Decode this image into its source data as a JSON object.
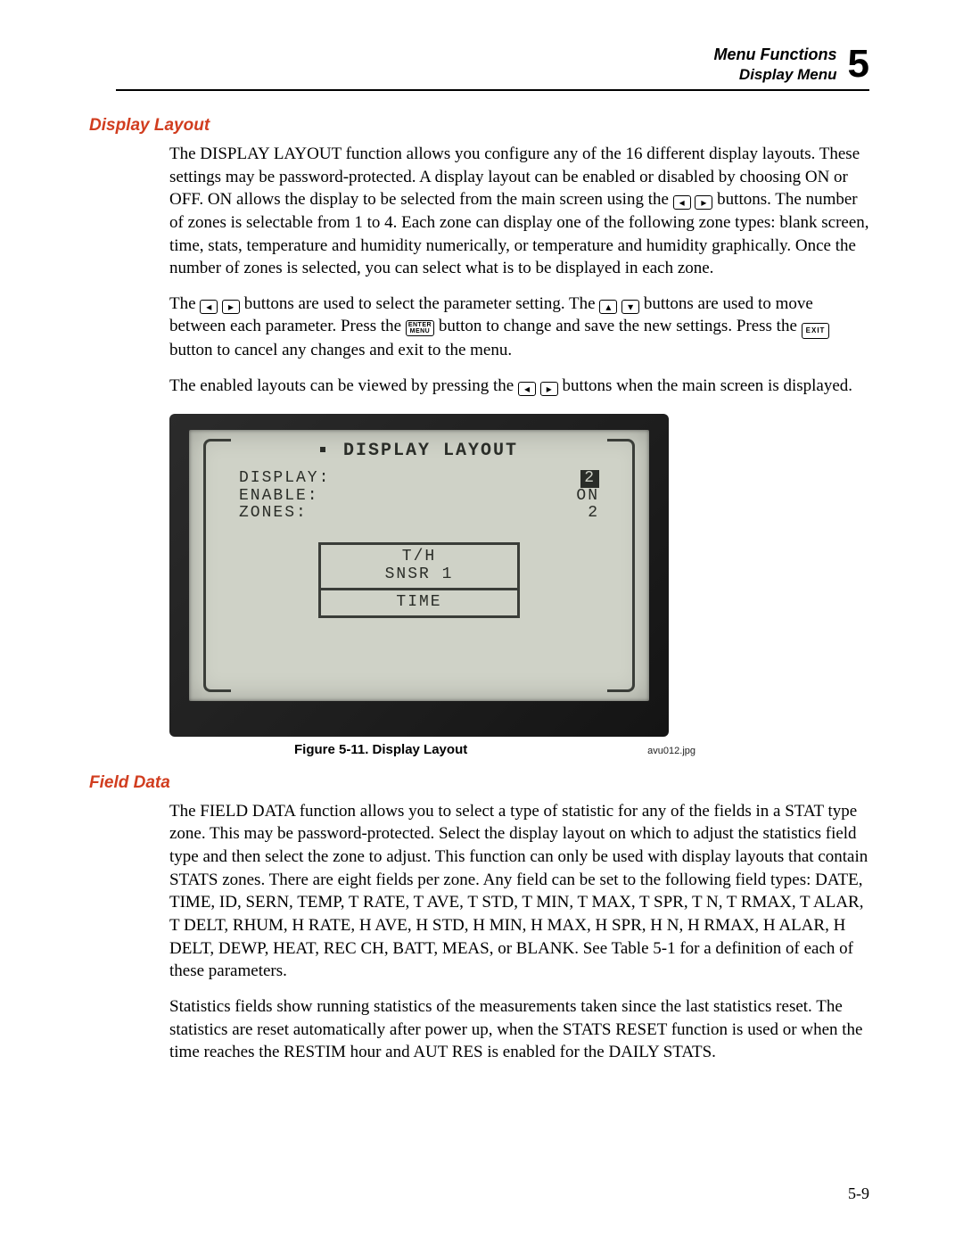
{
  "header": {
    "line1": "Menu Functions",
    "line2": "Display Menu",
    "chapter": "5"
  },
  "section1": {
    "title": "Display Layout",
    "p1a": "The DISPLAY LAYOUT function allows you configure any of the 16 different display layouts. These settings may be password-protected. A display layout can be enabled or disabled by choosing ON or OFF. ON allows the display to be selected from the main screen using the ",
    "p1b": " buttons. The number of zones is selectable from 1 to 4. Each zone can display one of the following zone types: blank screen, time, stats, temperature and humidity numerically, or temperature and humidity graphically. Once the number of zones is selected, you can select what is to be displayed in each zone.",
    "p2a": "The ",
    "p2b": " buttons are used to select the parameter setting. The ",
    "p2c": " buttons are used to move between each parameter. Press the ",
    "p2d": " button to change and save the new settings. Press the ",
    "p2e": " button to cancel any changes and exit to the menu.",
    "p3a": "The enabled layouts can be viewed by pressing the ",
    "p3b": " buttons when the main screen is displayed."
  },
  "lcd": {
    "title": "DISPLAY LAYOUT",
    "rows": [
      {
        "label": "DISPLAY:",
        "value": "2",
        "highlight": true
      },
      {
        "label": "ENABLE:",
        "value": "ON",
        "highlight": false
      },
      {
        "label": "ZONES:",
        "value": "2",
        "highlight": false
      }
    ],
    "zone1_line1": "T/H",
    "zone1_line2": "SNSR 1",
    "zone2": "TIME"
  },
  "figure": {
    "caption": "Figure 5-11. Display Layout",
    "file": "avu012.jpg"
  },
  "section2": {
    "title": "Field Data",
    "p1": "The FIELD DATA function allows you to select a type of statistic for any of the fields in a STAT type zone. This may be password-protected. Select the display layout on which to adjust the statistics field type and then select the zone to adjust. This function can only be used with display layouts that contain STATS zones. There are eight fields per zone. Any field can be set to the following field types: DATE, TIME, ID, SERN, TEMP, T RATE, T AVE, T STD, T MIN, T MAX, T SPR, T N, T RMAX, T ALAR, T DELT, RHUM, H RATE, H AVE, H STD, H MIN, H MAX, H SPR, H N, H RMAX, H ALAR, H DELT, DEWP, HEAT, REC CH, BATT, MEAS, or BLANK. See Table 5-1 for a definition of each of these parameters.",
    "p2": "Statistics fields show running statistics of the measurements taken since the last statistics reset. The statistics are reset automatically after power up, when the STATS RESET function is used or when the time reaches the RESTIM hour and AUT RES is enabled for the DAILY STATS."
  },
  "buttons": {
    "left": "◂",
    "right": "▸",
    "up": "▴",
    "down": "▾",
    "enter_l1": "ENTER",
    "enter_l2": "MENU",
    "exit": "EXIT"
  },
  "pagenum": "5-9"
}
